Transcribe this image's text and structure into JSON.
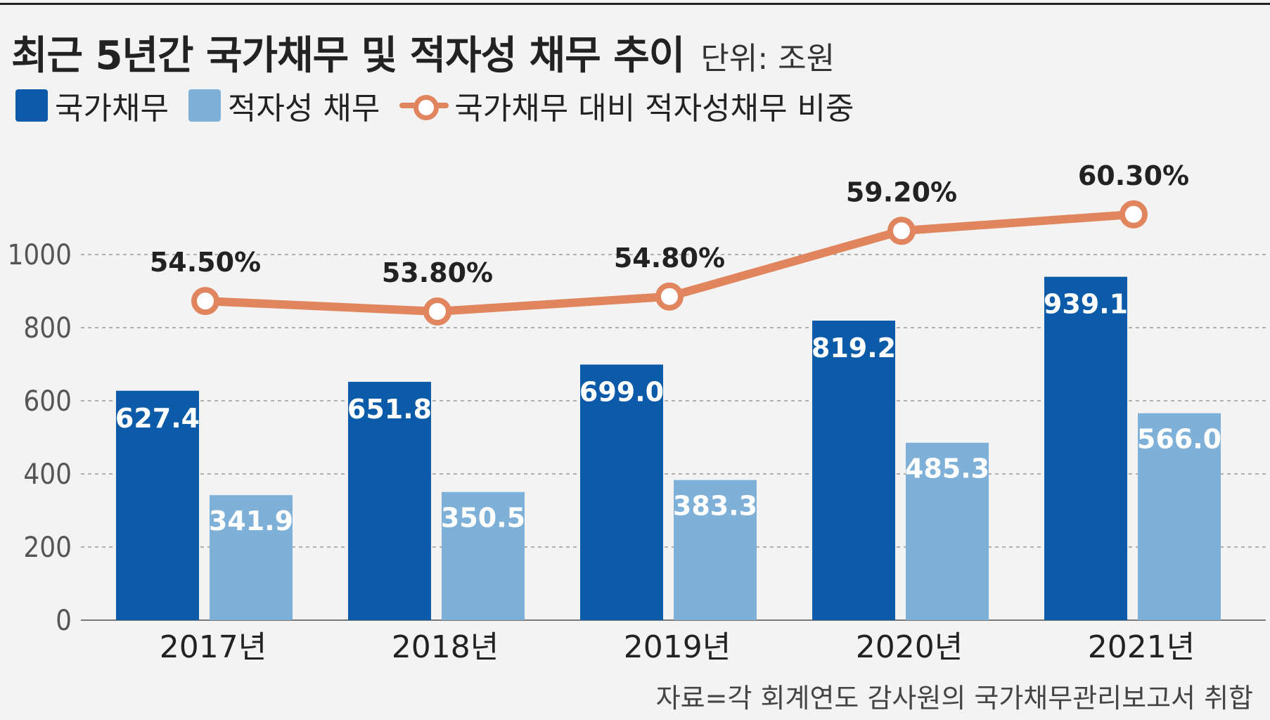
{
  "header": {
    "title": "최근 5년간 국가채무 및 적자성 채무 추이",
    "unit": "단위: 조원"
  },
  "legend": {
    "national_debt": "국가채무",
    "deficit_debt": "적자성 채무",
    "ratio": "국가채무 대비 적자성채무 비중"
  },
  "colors": {
    "national_debt": "#0b5ba8",
    "deficit_debt": "#7fb0d8",
    "ratio_line": "#e0855e",
    "grid": "#9a9a9a",
    "text": "#222222"
  },
  "source": "자료=각 회계연도 감사원의 국가채무관리보고서 취합",
  "chart_data": {
    "type": "bar",
    "categories": [
      "2017년",
      "2018년",
      "2019년",
      "2020년",
      "2021년"
    ],
    "series": [
      {
        "name": "국가채무",
        "values": [
          627.4,
          651.8,
          699.0,
          819.2,
          939.1
        ],
        "labels": [
          "627.4",
          "651.8",
          "699.0",
          "819.2",
          "939.1"
        ]
      },
      {
        "name": "적자성 채무",
        "values": [
          341.9,
          350.5,
          383.3,
          485.3,
          566.0
        ],
        "labels": [
          "341.9",
          "350.5",
          "383.3",
          "485.3",
          "566.0"
        ]
      }
    ],
    "line_series": {
      "name": "국가채무 대비 적자성채무 비중",
      "values": [
        54.5,
        53.8,
        54.8,
        59.2,
        60.3
      ],
      "labels": [
        "54.50%",
        "53.80%",
        "54.80%",
        "59.20%",
        "60.30%"
      ]
    },
    "y_ticks": [
      "0",
      "200",
      "400",
      "600",
      "800",
      "1000"
    ],
    "ylim": [
      0,
      1000
    ],
    "grid": true,
    "legend_position": "top-left"
  }
}
